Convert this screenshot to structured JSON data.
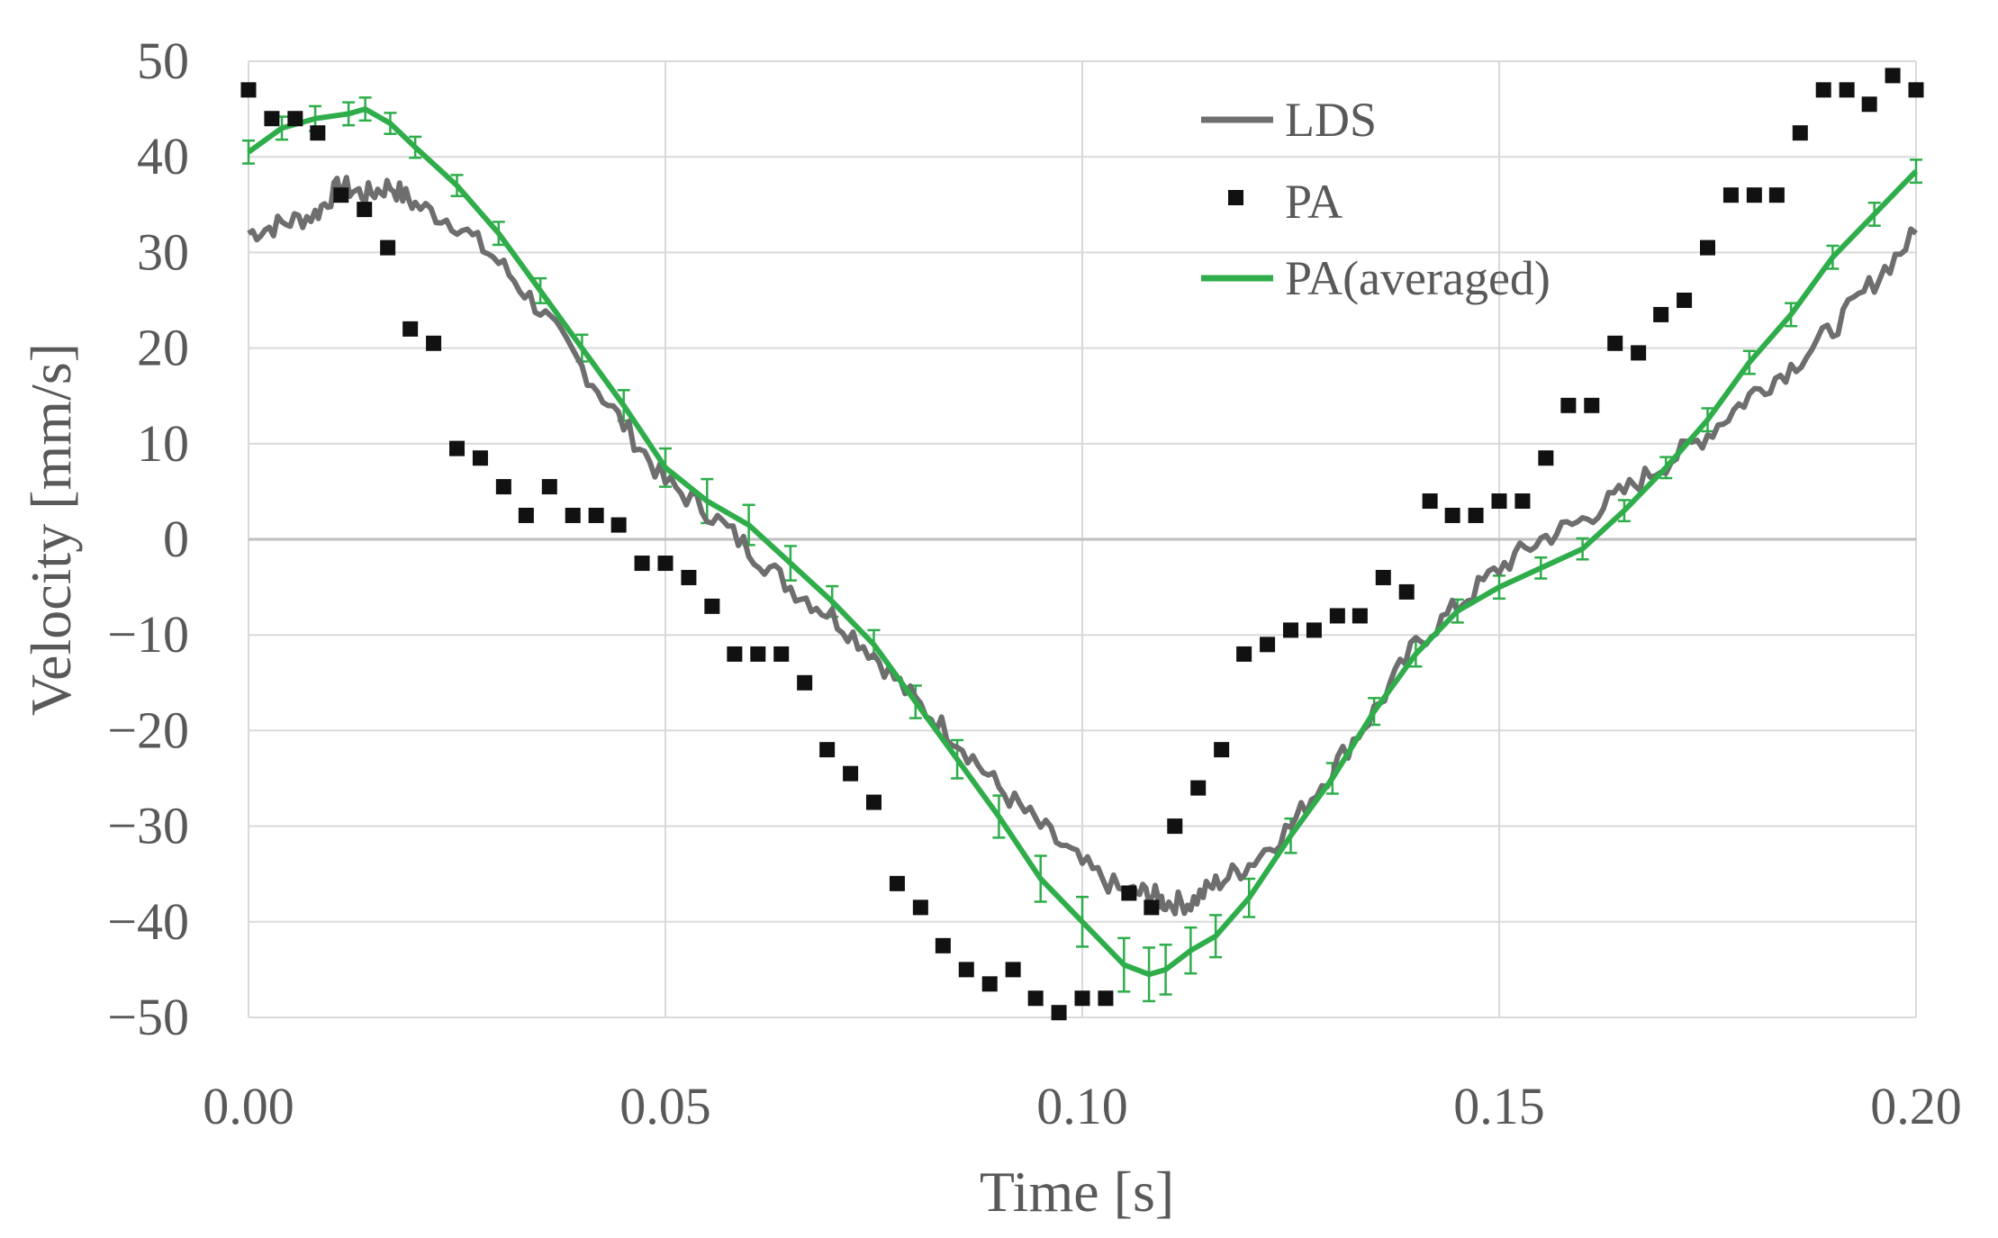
{
  "chart_data": {
    "type": "line",
    "title": "",
    "xlabel": "Time [s]",
    "ylabel": "Velocity [mm/s]",
    "xlim": [
      0,
      0.2
    ],
    "ylim": [
      -50,
      50
    ],
    "xticks": [
      0,
      0.05,
      0.1,
      0.15,
      0.2
    ],
    "xtick_labels": [
      "0.00",
      "0.05",
      "0.10",
      "0.15",
      "0.20"
    ],
    "yticks": [
      -50,
      -40,
      -30,
      -20,
      -10,
      0,
      10,
      20,
      30,
      40,
      50
    ],
    "ytick_labels": [
      "−50",
      "−40",
      "−30",
      "−20",
      "−10",
      "0",
      "10",
      "20",
      "30",
      "40",
      "50"
    ],
    "grid": true,
    "legend_position": "top-right",
    "legend": [
      "LDS",
      "PA",
      "PA(averaged)"
    ],
    "colors": {
      "lds": "#6e6e6e",
      "pa": "#111111",
      "pa_avg": "#2ead4a",
      "grid": "#d9d9d9"
    },
    "series": [
      {
        "name": "LDS",
        "style": "line",
        "x": [
          0.0,
          0.004,
          0.008,
          0.011,
          0.014,
          0.017,
          0.02,
          0.025,
          0.03,
          0.035,
          0.04,
          0.045,
          0.05,
          0.055,
          0.06,
          0.065,
          0.07,
          0.075,
          0.08,
          0.085,
          0.09,
          0.095,
          0.1,
          0.105,
          0.108,
          0.11,
          0.113,
          0.116,
          0.12,
          0.125,
          0.13,
          0.135,
          0.14,
          0.145,
          0.15,
          0.155,
          0.16,
          0.165,
          0.17,
          0.175,
          0.18,
          0.185,
          0.19,
          0.195,
          0.2
        ],
        "y": [
          32,
          33,
          34,
          37,
          36,
          37,
          35,
          33,
          29,
          24,
          18,
          12,
          6,
          3,
          -1,
          -5,
          -8,
          -12,
          -17,
          -21,
          -26,
          -30,
          -34,
          -37,
          -37,
          -38,
          -38,
          -36,
          -34,
          -30,
          -24,
          -18,
          -11,
          -7,
          -3,
          0,
          2,
          5,
          8,
          11,
          15,
          18,
          22,
          27,
          32
        ]
      },
      {
        "name": "PA",
        "style": "markers",
        "x": [
          0.0,
          0.0028,
          0.0056,
          0.0083,
          0.0111,
          0.0139,
          0.0167,
          0.0194,
          0.0222,
          0.025,
          0.0278,
          0.0306,
          0.0333,
          0.0361,
          0.0389,
          0.0417,
          0.0444,
          0.0472,
          0.05,
          0.0528,
          0.0556,
          0.0583,
          0.0611,
          0.0639,
          0.0667,
          0.0694,
          0.0722,
          0.075,
          0.0778,
          0.0806,
          0.0833,
          0.0861,
          0.0889,
          0.0917,
          0.0944,
          0.0972,
          0.1,
          0.1028,
          0.1056,
          0.1083,
          0.1111,
          0.1139,
          0.1167,
          0.1194,
          0.1222,
          0.125,
          0.1278,
          0.1306,
          0.1333,
          0.1361,
          0.1389,
          0.1417,
          0.1444,
          0.1472,
          0.15,
          0.1528,
          0.1556,
          0.1583,
          0.1611,
          0.1639,
          0.1667,
          0.1694,
          0.1722,
          0.175,
          0.1778,
          0.1806,
          0.1833,
          0.1861,
          0.1889,
          0.1917,
          0.1944,
          0.1972,
          0.2
        ],
        "y": [
          47,
          44,
          44,
          42.5,
          36,
          34.5,
          30.5,
          22,
          20.5,
          9.5,
          8.5,
          5.5,
          2.5,
          5.5,
          2.5,
          2.5,
          1.5,
          -2.5,
          -2.5,
          -4,
          -7,
          -12,
          -12,
          -12,
          -15,
          -22,
          -24.5,
          -27.5,
          -36,
          -38.5,
          -42.5,
          -45,
          -46.5,
          -45,
          -48,
          -49.5,
          -48,
          -48,
          -37,
          -38.5,
          -30,
          -26,
          -22,
          -12,
          -11,
          -9.5,
          -9.5,
          -8,
          -8,
          -4,
          -5.5,
          4,
          2.5,
          2.5,
          4,
          4,
          8.5,
          14,
          14,
          20.5,
          19.5,
          23.5,
          25,
          30.5,
          36,
          36,
          36,
          42.5,
          47,
          47,
          45.5,
          48.5,
          47
        ]
      },
      {
        "name": "PA(averaged)",
        "style": "line-errorbars",
        "x": [
          0.0,
          0.004,
          0.008,
          0.012,
          0.014,
          0.017,
          0.02,
          0.025,
          0.03,
          0.035,
          0.04,
          0.045,
          0.05,
          0.055,
          0.06,
          0.065,
          0.07,
          0.075,
          0.08,
          0.085,
          0.09,
          0.095,
          0.1,
          0.105,
          0.108,
          0.11,
          0.113,
          0.116,
          0.12,
          0.125,
          0.13,
          0.135,
          0.14,
          0.145,
          0.15,
          0.155,
          0.16,
          0.165,
          0.17,
          0.175,
          0.18,
          0.185,
          0.19,
          0.195,
          0.2
        ],
        "y": [
          40.5,
          43,
          44,
          44.5,
          45,
          43.5,
          41,
          37,
          32,
          26,
          20,
          14,
          7.5,
          4,
          1.5,
          -2.5,
          -6.5,
          -11,
          -17,
          -23,
          -29,
          -35.5,
          -40,
          -44.5,
          -45.5,
          -45,
          -43,
          -41.5,
          -37.5,
          -31,
          -25,
          -18,
          -12,
          -7.5,
          -5,
          -3,
          -1,
          3,
          7.5,
          12.5,
          18.5,
          23.5,
          29.5,
          34,
          38.5
        ],
        "error": [
          1.2,
          1.2,
          1.3,
          1.2,
          1.2,
          1.1,
          1.1,
          1.1,
          1.2,
          1.3,
          1.4,
          1.6,
          2.0,
          2.3,
          2.1,
          1.8,
          1.6,
          1.5,
          1.7,
          2.0,
          2.2,
          2.4,
          2.6,
          2.8,
          2.8,
          2.6,
          2.4,
          2.2,
          2.0,
          1.8,
          1.6,
          1.4,
          1.3,
          1.2,
          1.2,
          1.1,
          1.1,
          1.1,
          1.1,
          1.2,
          1.2,
          1.2,
          1.2,
          1.2,
          1.2
        ]
      }
    ]
  }
}
